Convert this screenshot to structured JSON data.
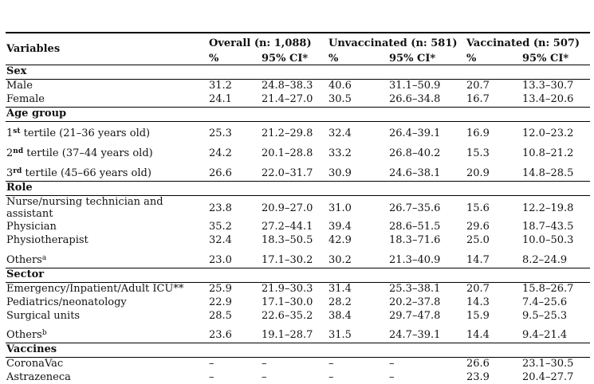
{
  "table": {
    "columns": {
      "variables_label": "Variables",
      "groups": [
        {
          "label": "Overall (n: 1,088)"
        },
        {
          "label": "Unvaccinated (n: 581)"
        },
        {
          "label": "Vaccinated (n: 507)"
        }
      ],
      "sub_pct": "%",
      "sub_ci": "95% CI*"
    },
    "sections": [
      {
        "label": "Sex",
        "rows": [
          {
            "label": [
              {
                "t": "Male"
              }
            ],
            "values": [
              "31.2",
              "24.8–38.3",
              "40.6",
              "31.1–50.9",
              "20.7",
              "13.3–30.7"
            ]
          },
          {
            "label": [
              {
                "t": "Female"
              }
            ],
            "values": [
              "24.1",
              "21.4–27.0",
              "30.5",
              "26.6–34.8",
              "16.7",
              "13.4–20.6"
            ]
          }
        ]
      },
      {
        "label": "Age group",
        "rows": [
          {
            "label": [
              {
                "t": "1"
              },
              {
                "t": "st",
                "sup": true,
                "bold": true
              },
              {
                "t": " tertile (21–36 years old)"
              }
            ],
            "values": [
              "25.3",
              "21.2–29.8",
              "32.4",
              "26.4–39.1",
              "16.9",
              "12.0–23.2"
            ]
          },
          {
            "label": [
              {
                "t": "2"
              },
              {
                "t": "nd",
                "sup": true,
                "bold": true
              },
              {
                "t": " tertile (37–44 years old)"
              }
            ],
            "values": [
              "24.2",
              "20.1–28.8",
              "33.2",
              "26.8–40.2",
              "15.3",
              "10.8–21.2"
            ]
          },
          {
            "label": [
              {
                "t": "3"
              },
              {
                "t": "rd",
                "sup": true,
                "bold": true
              },
              {
                "t": " tertile (45–66 years old)"
              }
            ],
            "values": [
              "26.6",
              "22.0–31.7",
              "30.9",
              "24.6–38.1",
              "20.9",
              "14.8–28.5"
            ]
          }
        ]
      },
      {
        "label": "Role",
        "rows": [
          {
            "label": [
              {
                "t": "Nurse/nursing technician and"
              },
              {
                "br": true
              },
              {
                "t": "assistant"
              }
            ],
            "values": [
              "23.8",
              "20.9–27.0",
              "31.0",
              "26.7–35.6",
              "15.6",
              "12.2–19.8"
            ]
          },
          {
            "label": [
              {
                "t": "Physician"
              }
            ],
            "values": [
              "35.2",
              "27.2–44.1",
              "39.4",
              "28.6–51.5",
              "29.6",
              "18.7–43.5"
            ]
          },
          {
            "label": [
              {
                "t": "Physiotherapist"
              }
            ],
            "values": [
              "32.4",
              "18.3–50.5",
              "42.9",
              "18.3–71.6",
              "25.0",
              "10.0–50.3"
            ]
          },
          {
            "label": [
              {
                "t": "Others"
              },
              {
                "t": "a",
                "sup": true
              }
            ],
            "values": [
              "23.0",
              "17.1–30.2",
              "30.2",
              "21.3–40.9",
              "14.7",
              "8.2–24.9"
            ]
          }
        ]
      },
      {
        "label": "Sector",
        "rows": [
          {
            "label": [
              {
                "t": "Emergency/Inpatient/Adult ICU**"
              }
            ],
            "values": [
              "25.9",
              "21.9–30.3",
              "31.4",
              "25.3–38.1",
              "20.7",
              "15.8–26.7"
            ]
          },
          {
            "label": [
              {
                "t": "Pediatrics/neonatology"
              }
            ],
            "values": [
              "22.9",
              "17.1–30.0",
              "28.2",
              "20.2–37.8",
              "14.3",
              "7.4–25.6"
            ]
          },
          {
            "label": [
              {
                "t": "Surgical units"
              }
            ],
            "values": [
              "28.5",
              "22.6–35.2",
              "38.4",
              "29.7–47.8",
              "15.9",
              "9.5–25.3"
            ]
          },
          {
            "label": [
              {
                "t": "Others"
              },
              {
                "t": "b",
                "sup": true
              }
            ],
            "values": [
              "23.6",
              "19.1–28.7",
              "31.5",
              "24.7–39.1",
              "14.4",
              "9.4–21.4"
            ]
          }
        ]
      },
      {
        "label": "Vaccines",
        "rows": [
          {
            "label": [
              {
                "t": "CoronaVac"
              }
            ],
            "values": [
              "–",
              "–",
              "–",
              "–",
              "26.6",
              "23.1–30.5"
            ]
          },
          {
            "label": [
              {
                "t": "Astrazeneca"
              }
            ],
            "values": [
              "–",
              "–",
              "–",
              "–",
              "23.9",
              "20.4–27.7"
            ]
          }
        ]
      }
    ]
  },
  "colors": {
    "text": "#121212",
    "rule": "#000000",
    "background": "#ffffff"
  }
}
